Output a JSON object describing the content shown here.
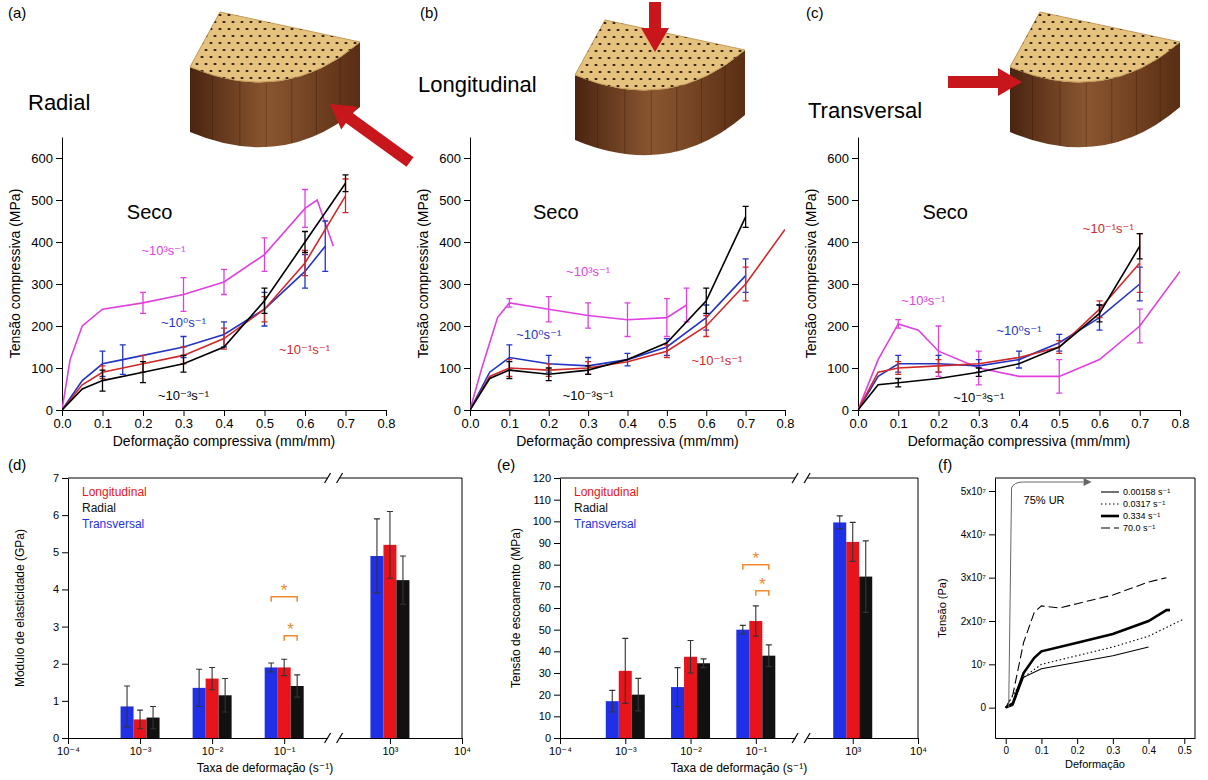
{
  "chart_data": [
    {
      "type": "line",
      "panel_label": "(a)",
      "title": "Radial",
      "annotations": [
        {
          "text": "Seco"
        }
      ],
      "x_label": "Deformação compressiva (mm/mm)",
      "y_label": "Tensão compressiva (MPa)",
      "xlim": [
        0,
        0.8
      ],
      "xticks": [
        {
          "value": 0,
          "label": "0.0"
        },
        0.1,
        0.2,
        0.3,
        0.4,
        0.5,
        0.6,
        0.7,
        0.8
      ],
      "ylim": [
        0,
        650
      ],
      "yticks": [
        0,
        100,
        200,
        300,
        400,
        500,
        600
      ],
      "series": [
        {
          "name": "~10³s⁻¹",
          "color": "#e040e0",
          "x": [
            0,
            0.02,
            0.05,
            0.1,
            0.2,
            0.3,
            0.4,
            0.5,
            0.6,
            0.63,
            0.67
          ],
          "values": [
            0,
            120,
            200,
            240,
            255,
            275,
            305,
            370,
            480,
            500,
            390
          ],
          "errors": [
            null,
            null,
            null,
            null,
            25,
            40,
            30,
            40,
            45,
            null,
            null
          ]
        },
        {
          "name": "~10⁰s⁻¹",
          "color": "#2234c4",
          "x": [
            0,
            0.05,
            0.1,
            0.15,
            0.3,
            0.4,
            0.5,
            0.6,
            0.65
          ],
          "values": [
            0,
            70,
            110,
            120,
            150,
            180,
            240,
            330,
            390
          ],
          "errors": [
            null,
            null,
            30,
            35,
            25,
            30,
            40,
            40,
            60
          ]
        },
        {
          "name": "~10⁻¹s⁻¹",
          "color": "#d02828",
          "x": [
            0,
            0.05,
            0.1,
            0.2,
            0.3,
            0.4,
            0.5,
            0.6,
            0.7
          ],
          "values": [
            0,
            60,
            90,
            110,
            130,
            170,
            240,
            350,
            510
          ],
          "errors": [
            null,
            null,
            15,
            20,
            20,
            25,
            30,
            30,
            40
          ]
        },
        {
          "name": "~10⁻³s⁻¹",
          "color": "#000000",
          "x": [
            0,
            0.05,
            0.1,
            0.2,
            0.3,
            0.4,
            0.5,
            0.6,
            0.7
          ],
          "values": [
            0,
            50,
            70,
            90,
            110,
            150,
            260,
            400,
            540
          ],
          "errors": [
            null,
            null,
            25,
            25,
            20,
            null,
            30,
            25,
            20
          ]
        }
      ]
    },
    {
      "type": "line",
      "panel_label": "(b)",
      "title": "Longitudinal",
      "annotations": [
        {
          "text": "Seco"
        }
      ],
      "x_label": "Deformação compressiva (mm/mm)",
      "y_label": "Tensão compressiva (MPa)",
      "xlim": [
        0,
        0.8
      ],
      "xticks": [
        {
          "value": 0,
          "label": "0.0"
        },
        0.1,
        0.2,
        0.3,
        0.4,
        0.5,
        0.6,
        0.7,
        0.8
      ],
      "ylim": [
        0,
        650
      ],
      "yticks": [
        0,
        100,
        200,
        300,
        400,
        500,
        600
      ],
      "series": [
        {
          "name": "~10³s⁻¹",
          "color": "#e040e0",
          "x": [
            0,
            0.03,
            0.07,
            0.1,
            0.2,
            0.3,
            0.4,
            0.5,
            0.55
          ],
          "values": [
            0,
            100,
            220,
            255,
            240,
            225,
            215,
            220,
            250
          ],
          "errors": [
            null,
            null,
            null,
            10,
            30,
            30,
            40,
            45,
            40
          ]
        },
        {
          "name": "~10⁰s⁻¹",
          "color": "#2234c4",
          "x": [
            0,
            0.05,
            0.1,
            0.2,
            0.3,
            0.4,
            0.5,
            0.6,
            0.7
          ],
          "values": [
            0,
            90,
            125,
            110,
            105,
            120,
            150,
            220,
            320
          ],
          "errors": [
            null,
            null,
            30,
            20,
            20,
            15,
            20,
            30,
            40
          ]
        },
        {
          "name": "~10⁻¹s⁻¹",
          "color": "#d02828",
          "x": [
            0,
            0.05,
            0.1,
            0.2,
            0.3,
            0.4,
            0.5,
            0.6,
            0.7,
            0.8
          ],
          "values": [
            0,
            80,
            100,
            95,
            100,
            115,
            140,
            200,
            300,
            430
          ],
          "errors": [
            null,
            null,
            20,
            15,
            15,
            null,
            15,
            25,
            40,
            null
          ]
        },
        {
          "name": "~10⁻³s⁻¹",
          "color": "#000000",
          "x": [
            0,
            0.05,
            0.1,
            0.2,
            0.3,
            0.4,
            0.5,
            0.6,
            0.7
          ],
          "values": [
            0,
            75,
            95,
            85,
            95,
            120,
            160,
            260,
            460
          ],
          "errors": [
            null,
            null,
            20,
            15,
            10,
            null,
            null,
            30,
            25
          ]
        }
      ]
    },
    {
      "type": "line",
      "panel_label": "(c)",
      "title": "Transversal",
      "annotations": [
        {
          "text": "Seco"
        }
      ],
      "x_label": "Deformação compressiva (mm/mm)",
      "y_label": "Tensão compressiva (MPa)",
      "xlim": [
        0,
        0.8
      ],
      "xticks": [
        {
          "value": 0,
          "label": "0.0"
        },
        0.1,
        0.2,
        0.3,
        0.4,
        0.5,
        0.6,
        0.7,
        0.8
      ],
      "ylim": [
        0,
        650
      ],
      "yticks": [
        0,
        100,
        200,
        300,
        400,
        500,
        600
      ],
      "series": [
        {
          "name": "~10³s⁻¹",
          "color": "#e040e0",
          "x": [
            0,
            0.05,
            0.1,
            0.15,
            0.2,
            0.3,
            0.4,
            0.5,
            0.6,
            0.7,
            0.8
          ],
          "values": [
            0,
            120,
            205,
            190,
            140,
            100,
            80,
            80,
            120,
            200,
            330
          ],
          "errors": [
            null,
            null,
            10,
            null,
            60,
            40,
            null,
            40,
            null,
            40,
            null
          ]
        },
        {
          "name": "~10⁰s⁻¹",
          "color": "#2234c4",
          "x": [
            0,
            0.05,
            0.1,
            0.2,
            0.3,
            0.4,
            0.5,
            0.6,
            0.7
          ],
          "values": [
            0,
            80,
            110,
            110,
            105,
            120,
            160,
            220,
            300
          ],
          "errors": [
            null,
            null,
            20,
            20,
            15,
            20,
            20,
            30,
            40
          ]
        },
        {
          "name": "~10⁻¹s⁻¹",
          "color": "#d02828",
          "x": [
            0,
            0.05,
            0.1,
            0.2,
            0.3,
            0.4,
            0.5,
            0.6,
            0.7
          ],
          "values": [
            0,
            90,
            100,
            105,
            110,
            125,
            150,
            240,
            350
          ],
          "errors": [
            null,
            null,
            15,
            15,
            null,
            null,
            15,
            20,
            70
          ]
        },
        {
          "name": "~10⁻³s⁻¹",
          "color": "#000000",
          "x": [
            0,
            0.05,
            0.1,
            0.2,
            0.3,
            0.4,
            0.5,
            0.6,
            0.7
          ],
          "values": [
            0,
            60,
            65,
            75,
            90,
            110,
            150,
            230,
            390
          ],
          "errors": [
            null,
            null,
            10,
            null,
            10,
            null,
            null,
            20,
            30
          ]
        }
      ]
    },
    {
      "type": "bar",
      "panel_label": "(d)",
      "log": "x",
      "legend": "top-left",
      "x_label": "Taxa de deformação (s⁻¹)",
      "y_label": "Módulo de elasticidade (GPa)",
      "x": [
        0.001,
        0.01,
        0.1,
        1000
      ],
      "xlim": [
        [
          0.0001,
          0.4
        ],
        [
          200,
          10000
        ]
      ],
      "xticks": [
        {
          "value": 0.0001,
          "label": "10⁻⁴"
        },
        {
          "value": 0.001,
          "label": "10⁻³"
        },
        {
          "value": 0.01,
          "label": "10⁻²"
        },
        {
          "value": 0.1,
          "label": "10⁻¹"
        },
        {
          "value": 1000,
          "label": "10³"
        },
        {
          "value": 10000,
          "label": "10⁴"
        }
      ],
      "ylim": [
        0,
        7
      ],
      "yticks": [
        0,
        1,
        2,
        3,
        4,
        5,
        6,
        7
      ],
      "series": [
        {
          "name": "Longitudinal",
          "color": "#e8141c",
          "values": [
            0.5,
            1.6,
            1.9,
            5.2
          ],
          "errors": [
            0.25,
            0.3,
            0.22,
            0.9
          ]
        },
        {
          "name": "Radial",
          "color": "#111111",
          "values": [
            0.55,
            1.15,
            1.4,
            4.25
          ],
          "errors": [
            0.3,
            0.45,
            0.3,
            0.65
          ]
        },
        {
          "name": "Transversal",
          "color": "#1f30e6",
          "values": [
            0.85,
            1.35,
            1.9,
            4.9
          ],
          "errors": [
            0.55,
            0.5,
            0.12,
            1.0
          ]
        }
      ],
      "annotations": [
        {
          "text": "*",
          "x": 0.1,
          "y": 3.8
        },
        {
          "text": "*",
          "x": 0.1,
          "y": 2.75
        }
      ]
    },
    {
      "type": "bar",
      "panel_label": "(e)",
      "log": "x",
      "legend": "top-left",
      "x_label": "Taxa de deformação (s⁻¹)",
      "y_label": "Tensão de escoamento (MPa)",
      "x": [
        0.001,
        0.01,
        0.1,
        1000
      ],
      "xlim": [
        [
          0.0001,
          0.4
        ],
        [
          200,
          10000
        ]
      ],
      "xticks": [
        {
          "value": 0.0001,
          "label": "10⁻⁴"
        },
        {
          "value": 0.001,
          "label": "10⁻³"
        },
        {
          "value": 0.01,
          "label": "10⁻²"
        },
        {
          "value": 0.1,
          "label": "10⁻¹"
        },
        {
          "value": 1000,
          "label": "10³"
        },
        {
          "value": 10000,
          "label": "10⁴"
        }
      ],
      "ylim": [
        0,
        120
      ],
      "yticks": [
        0,
        10,
        20,
        30,
        40,
        50,
        60,
        70,
        80,
        90,
        100,
        110,
        120
      ],
      "series": [
        {
          "name": "Longitudinal",
          "color": "#e8141c",
          "values": [
            31,
            37.5,
            54,
            90.5
          ],
          "errors": [
            15,
            7.5,
            7,
            9
          ]
        },
        {
          "name": "Radial",
          "color": "#111111",
          "values": [
            20,
            34.5,
            38,
            74.5
          ],
          "errors": [
            7.5,
            2,
            5,
            16.5
          ]
        },
        {
          "name": "Transversal",
          "color": "#1f30e6",
          "values": [
            17,
            23.5,
            50,
            99.5
          ],
          "errors": [
            5,
            9,
            2,
            3
          ]
        }
      ],
      "annotations": [
        {
          "text": "*",
          "x": 0.1,
          "y": 80
        },
        {
          "text": "*",
          "x": 0.1,
          "y": 68
        }
      ]
    },
    {
      "type": "line",
      "panel_label": "(f)",
      "legend": "top-right",
      "x_label": "Deformação",
      "y_label": "Tensão (Pa)",
      "xlim": [
        -0.03,
        0.53
      ],
      "xticks": [
        0,
        0.1,
        0.2,
        0.3,
        0.4,
        0.5
      ],
      "ylim": [
        -7000000,
        53000000
      ],
      "yticks": [
        0,
        {
          "value": 10000000,
          "label": "10⁷"
        },
        {
          "value": 20000000,
          "label": "2x10⁷"
        },
        {
          "value": 30000000,
          "label": "3x10⁷"
        },
        {
          "value": 40000000,
          "label": "4x10⁷"
        },
        {
          "value": 50000000,
          "label": "5x10⁷"
        }
      ],
      "annotations": [
        {
          "text": "75% UR",
          "x": 0.05,
          "y": 47000000
        }
      ],
      "series": [
        {
          "name": "0.00158 s⁻¹",
          "color": "#000000",
          "line_style": "solid",
          "x": [
            0,
            0.02,
            0.05,
            0.1,
            0.2,
            0.3,
            0.4
          ],
          "values": [
            0,
            500000,
            7000000,
            9000000,
            10500000,
            12000000,
            14000000
          ]
        },
        {
          "name": "0.0317 s⁻¹",
          "color": "#000000",
          "line_style": "dotted",
          "x": [
            0,
            0.05,
            0.1,
            0.2,
            0.3,
            0.4,
            0.5
          ],
          "values": [
            0,
            7000000,
            10000000,
            12000000,
            14000000,
            16500000,
            20500000
          ]
        },
        {
          "name": "0.334 s⁻¹",
          "color": "#000000",
          "line_style": "thick",
          "x": [
            0,
            0.02,
            0.05,
            0.08,
            0.1,
            0.2,
            0.3,
            0.4,
            0.45,
            0.46
          ],
          "values": [
            0,
            1000000,
            8000000,
            11500000,
            13000000,
            15000000,
            17000000,
            20000000,
            22500000,
            22500000
          ]
        },
        {
          "name": "70.0 s⁻¹",
          "color": "#000000",
          "line_style": "dashed",
          "x": [
            0,
            0.02,
            0.05,
            0.08,
            0.1,
            0.15,
            0.2,
            0.3,
            0.4,
            0.45
          ],
          "values": [
            0,
            3000000,
            15000000,
            22000000,
            23500000,
            23000000,
            24000000,
            26000000,
            29000000,
            30000000
          ]
        }
      ]
    }
  ]
}
